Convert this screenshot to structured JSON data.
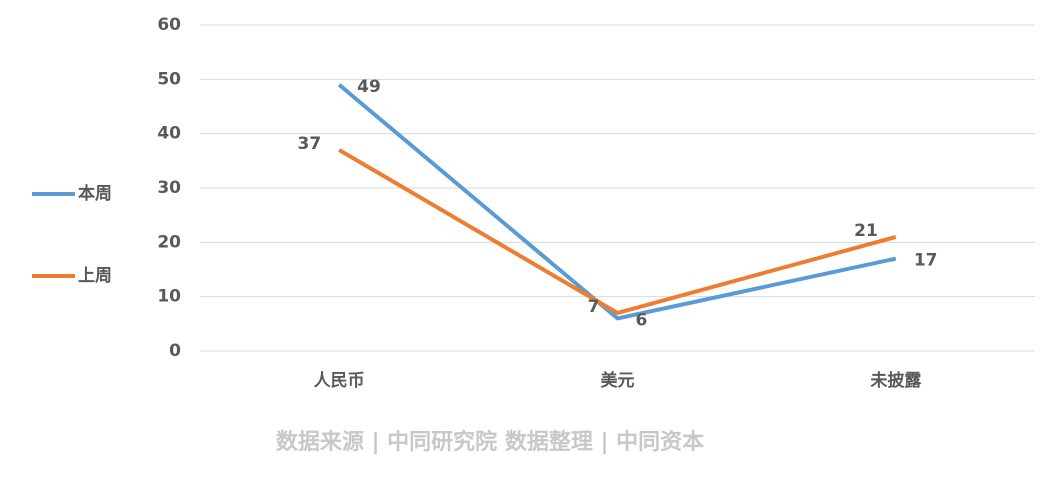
{
  "chart_data": {
    "type": "line",
    "categories": [
      "人民币",
      "美元",
      "未披露"
    ],
    "series": [
      {
        "name": "本周",
        "color": "#5b9bd5",
        "values": [
          49,
          6,
          17
        ]
      },
      {
        "name": "上周",
        "color": "#ed7d31",
        "values": [
          37,
          7,
          21
        ]
      }
    ],
    "ylim": [
      0,
      60
    ],
    "yticks": [
      0,
      10,
      20,
      30,
      40,
      50,
      60
    ],
    "grid": true,
    "legend": "left",
    "source": "数据来源 | 中同研究院  数据整理 | 中同资本"
  }
}
